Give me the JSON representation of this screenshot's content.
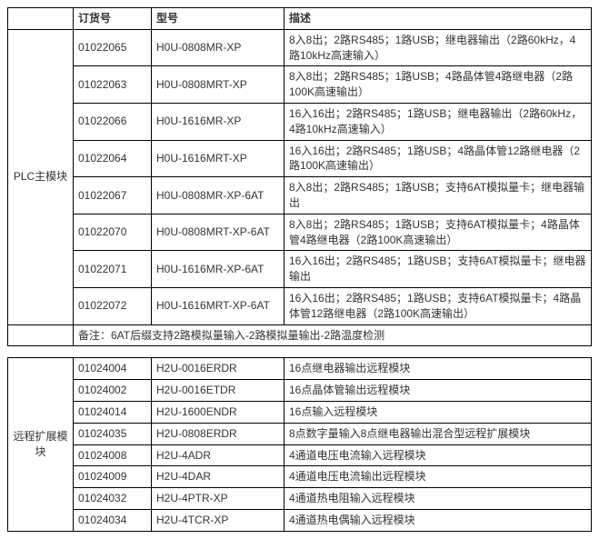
{
  "header": {
    "col_order": "订货号",
    "col_model": "型号",
    "col_desc": "描述"
  },
  "section1": {
    "category": "PLC主模块",
    "rows": [
      {
        "order": "01022065",
        "model": "H0U-0808MR-XP",
        "desc": "8入8出；2路RS485；1路USB；继电器输出（2路60kHz，4路10kHz高速输入）"
      },
      {
        "order": "01022063",
        "model": "H0U-0808MRT-XP",
        "desc": "8入8出；2路RS485；1路USB；4路晶体管4路继电器（2路100K高速输出）"
      },
      {
        "order": "01022066",
        "model": "H0U-1616MR-XP",
        "desc": "16入16出；2路RS485；1路USB；继电器输出（2路60kHz，4路10kHz高速输入）"
      },
      {
        "order": "01022064",
        "model": "H0U-1616MRT-XP",
        "desc": "16入16出；2路RS485；1路USB；4路晶体管12路继电器（2路100K高速输出）"
      },
      {
        "order": "01022067",
        "model": "H0U-0808MR-XP-6AT",
        "desc": "8入8出；2路RS485；1路USB；支持6AT模拟量卡；继电器输出"
      },
      {
        "order": "01022070",
        "model": "H0U-0808MRT-XP-6AT",
        "desc": "8入8出；2路RS485；1路USB；支持6AT模拟量卡；4路晶体管4路继电器（2路100K高速输出）"
      },
      {
        "order": "01022071",
        "model": "H0U-1616MR-XP-6AT",
        "desc": "16入16出；2路RS485；1路USB；支持6AT模拟量卡；继电器输出"
      },
      {
        "order": "01022072",
        "model": "H0U-1616MRT-XP-6AT",
        "desc": "16入16出；2路RS485；1路USB；支持6AT模拟量卡；4路晶体管12路继电器（2路100K高速输出）"
      }
    ],
    "note": "备注：6AT后缀支持2路模拟量输入-2路模拟量输出-2路温度检测"
  },
  "section2": {
    "category": "远程扩展模块",
    "rows": [
      {
        "order": "01024004",
        "model": "H2U-0016ERDR",
        "desc": "16点继电器输出远程模块"
      },
      {
        "order": "01024002",
        "model": "H2U-0016ETDR",
        "desc": "16点晶体管输出远程模块"
      },
      {
        "order": "01024014",
        "model": "H2U-1600ENDR",
        "desc": "16点输入远程模块"
      },
      {
        "order": "01024035",
        "model": "H2U-0808ERDR",
        "desc": "8点数字量输入8点继电器输出混合型远程扩展模块"
      },
      {
        "order": "01024008",
        "model": "H2U-4ADR",
        "desc": "4通道电压电流输入远程模块"
      },
      {
        "order": "01024009",
        "model": "H2U-4DAR",
        "desc": "4通道电压电流输出远程模块"
      },
      {
        "order": "01024032",
        "model": "H2U-4PTR-XP",
        "desc": "4通道热电阻输入远程模块"
      },
      {
        "order": "01024034",
        "model": "H2U-4TCR-XP",
        "desc": "4通道热电偶输入远程模块"
      }
    ]
  }
}
